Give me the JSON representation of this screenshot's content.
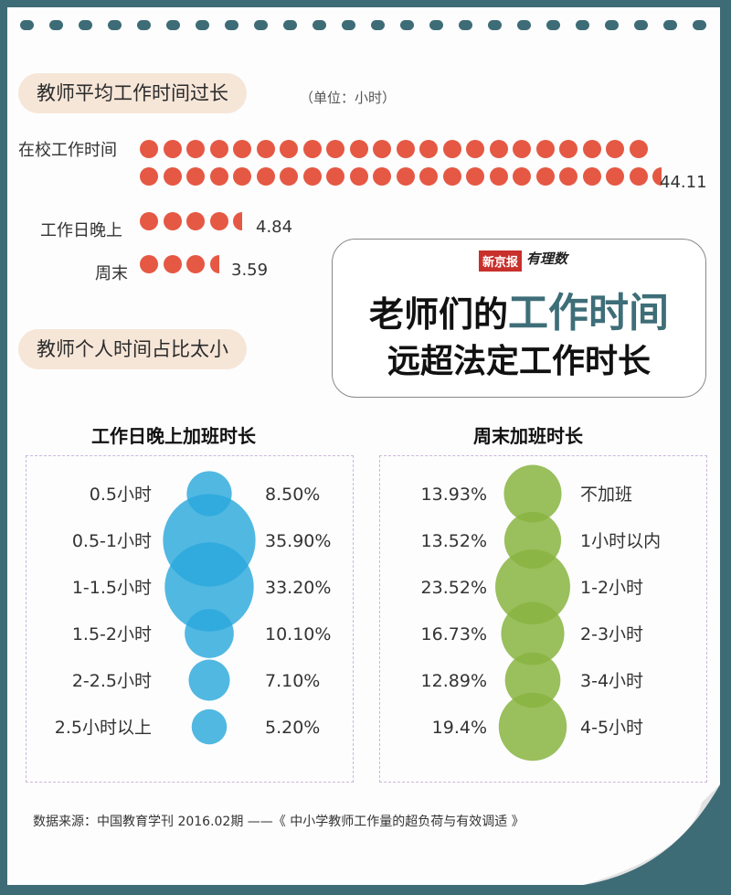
{
  "headline": {
    "line1_a": "老师们的",
    "line1_b": "工作时间",
    "line2": "远超法定工作时长"
  },
  "brand": {
    "newspaper": "新京报",
    "column": "有理数"
  },
  "section1": {
    "title": "教师平均工作时间过长",
    "unit": "（单位：小时）"
  },
  "section2": {
    "title": "教师个人时间占比太小"
  },
  "source": "数据来源：中国教育学刊 2016.02期 ——《 中小学教师工作量的超负荷与有效调适 》",
  "colors": {
    "dot": "#e55844",
    "blue": "#2ba8dc",
    "green": "#88b441",
    "accent": "#3e6e78",
    "background": "#3e6c76"
  },
  "chart_data": [
    {
      "type": "pictograph",
      "title": "教师平均工作时间过长",
      "unit": "小时",
      "categories": [
        "在校工作时间",
        "工作日晚上",
        "周末"
      ],
      "values": [
        44.11,
        4.84,
        3.59
      ],
      "value_labels": [
        "44.11",
        "4.84",
        "3.59"
      ]
    },
    {
      "type": "bubble",
      "title": "工作日晚上加班时长",
      "categories": [
        "0.5小时",
        "0.5-1小时",
        "1-1.5小时",
        "1.5-2小时",
        "2-2.5小时",
        "2.5小时以上"
      ],
      "values": [
        8.5,
        35.9,
        33.2,
        10.1,
        7.1,
        5.2
      ],
      "value_labels": [
        "8.50%",
        "35.90%",
        "33.20%",
        "10.10%",
        "7.10%",
        "5.20%"
      ]
    },
    {
      "type": "bubble",
      "title": "周末加班时长",
      "categories": [
        "不加班",
        "1小时以内",
        "1-2小时",
        "2-3小时",
        "3-4小时",
        "4-5小时"
      ],
      "values": [
        13.93,
        13.52,
        23.52,
        16.73,
        12.89,
        19.4
      ],
      "value_labels": [
        "13.93%",
        "13.52%",
        "23.52%",
        "16.73%",
        "12.89%",
        "19.4%"
      ]
    }
  ]
}
